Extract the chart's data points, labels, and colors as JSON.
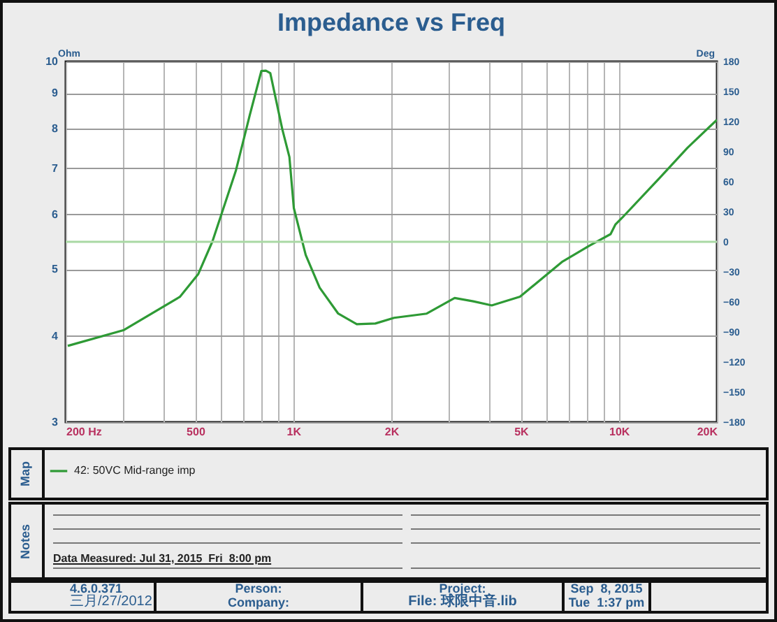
{
  "chart_data": {
    "type": "line",
    "title": "Impedance vs Freq",
    "ylabel": "Ohm",
    "y2label": "Deg",
    "x": [
      203,
      302,
      449,
      511,
      565,
      666,
      735,
      798,
      824,
      850,
      925,
      973,
      1004,
      1092,
      1205,
      1374,
      1567,
      1787,
      2040,
      2570,
      3130,
      3570,
      4070,
      4970,
      6680,
      8130,
      9430,
      9750,
      10250,
      13340,
      16250,
      20000
    ],
    "series": [
      {
        "name": "42: 50VC  Mid-range imp",
        "color": "#2e9a35",
        "values": [
          3.87,
          4.08,
          4.56,
          4.92,
          5.49,
          6.94,
          8.36,
          9.69,
          9.7,
          9.62,
          7.98,
          7.27,
          6.13,
          5.24,
          4.7,
          4.31,
          4.16,
          4.17,
          4.25,
          4.31,
          4.54,
          4.49,
          4.43,
          4.56,
          5.12,
          5.41,
          5.62,
          5.8,
          5.94,
          6.78,
          7.5,
          8.23
        ]
      }
    ],
    "log": "xy",
    "xlim": [
      200,
      20000
    ],
    "xticks": [
      {
        "value": 200,
        "label": "200  Hz"
      },
      {
        "value": 300,
        "label": null
      },
      {
        "value": 400,
        "label": null
      },
      {
        "value": 500,
        "label": "500"
      },
      {
        "value": 600,
        "label": null
      },
      {
        "value": 700,
        "label": null
      },
      {
        "value": 800,
        "label": null
      },
      {
        "value": 900,
        "label": null
      },
      {
        "value": 1000,
        "label": "1K"
      },
      {
        "value": 2000,
        "label": "2K"
      },
      {
        "value": 3000,
        "label": null
      },
      {
        "value": 4000,
        "label": null
      },
      {
        "value": 5000,
        "label": "5K"
      },
      {
        "value": 6000,
        "label": null
      },
      {
        "value": 7000,
        "label": null
      },
      {
        "value": 8000,
        "label": null
      },
      {
        "value": 9000,
        "label": null
      },
      {
        "value": 10000,
        "label": "10K"
      },
      {
        "value": 20000,
        "label": "20K"
      }
    ],
    "ylim": [
      3,
      10
    ],
    "yticks": [
      3,
      4,
      5,
      6,
      7,
      8,
      9,
      10
    ],
    "y2lim": [
      -180,
      180
    ],
    "y2ticks": [
      -180,
      -150,
      -120,
      -90,
      -60,
      -30,
      0,
      30,
      60,
      90,
      120,
      150,
      180
    ],
    "ref_lines": [
      {
        "axis": "y2",
        "value": 0,
        "color": "#a9d9a4"
      }
    ],
    "grid": true,
    "legend": "bottom left",
    "annotations": [
      "Map",
      "Notes",
      "Data Measured: Jul 31, 2015  Fri  8:00 pm",
      "4.6.0.371",
      "三月/27/2012",
      "Person:",
      "Company:",
      "Project:",
      "File: 球限中音.lib",
      "Sep  8, 2015",
      "Tue  1:37 pm"
    ]
  }
}
